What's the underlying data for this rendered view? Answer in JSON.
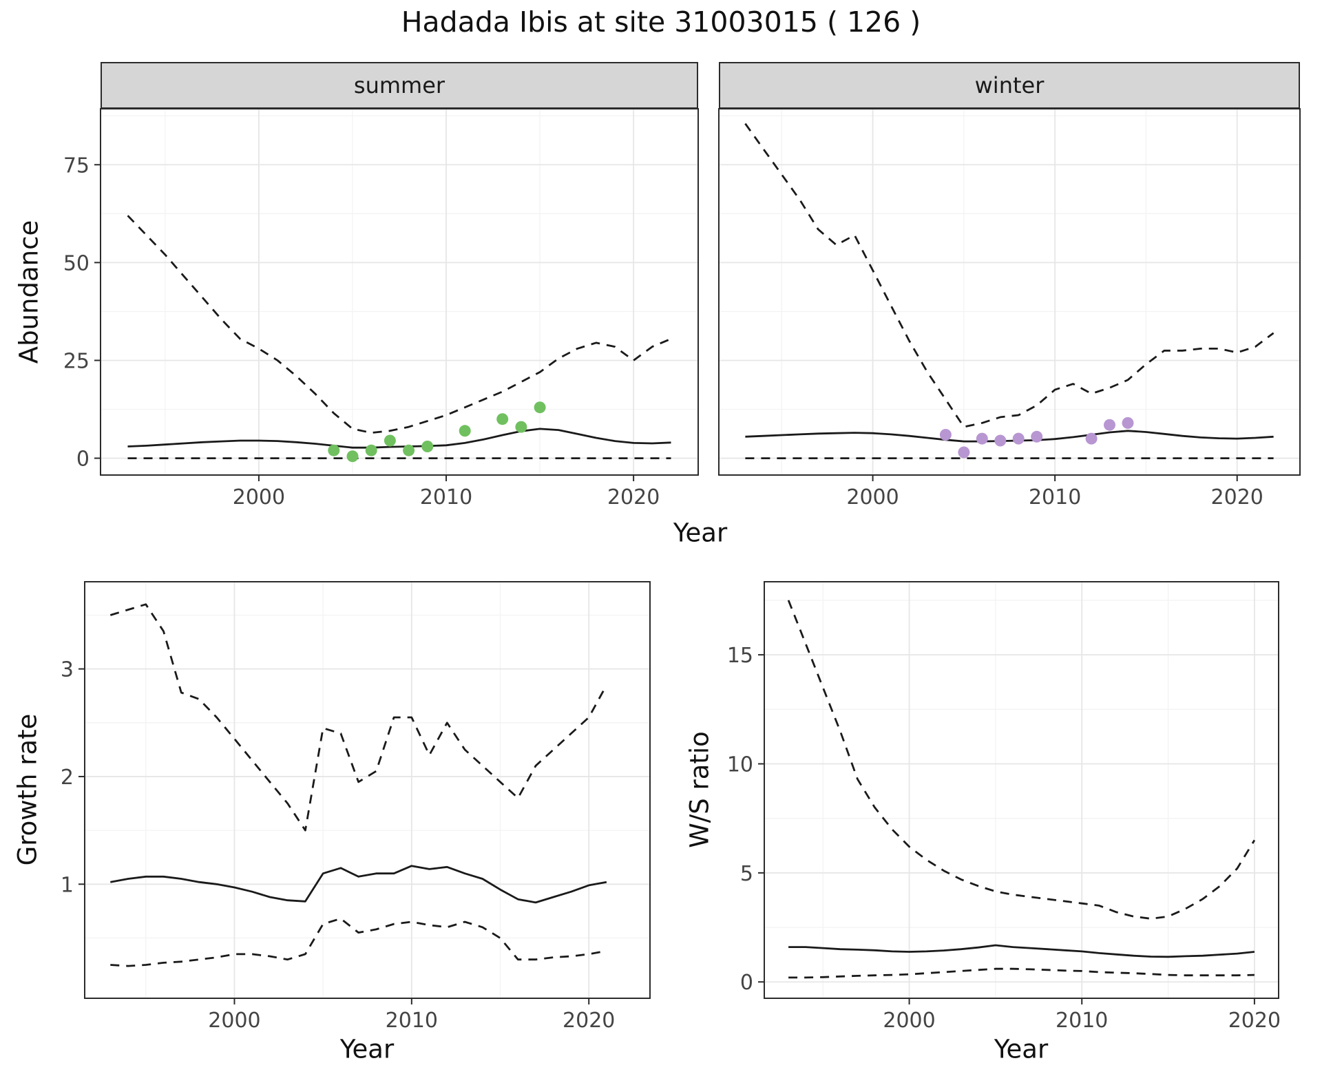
{
  "title": "Hadada Ibis at site 31003015 ( 126 )",
  "colors": {
    "line": "#1a1a1a",
    "summer_points": "#70c05f",
    "winter_points": "#b896d2",
    "grid_major": "#e6e6e6",
    "grid_minor": "#f3f3f3",
    "panel_border": "#2b2b2b",
    "strip_bg": "#d6d6d6",
    "strip_border": "#2b2b2b",
    "strip_text": "#1a1a1a",
    "tick_text": "#444444"
  },
  "chart_data": [
    {
      "id": "abundance_summer",
      "type": "line",
      "facet": "summer",
      "ylabel": "Abundance",
      "xlabel": "Year",
      "xlim": [
        1991.55,
        2023.45
      ],
      "ylim": [
        -4.3,
        89.3
      ],
      "xticks": [
        2000,
        2010,
        2020
      ],
      "yticks": [
        0,
        25,
        50,
        75
      ],
      "x": [
        1993,
        1994,
        1995,
        1996,
        1997,
        1998,
        1999,
        2000,
        2001,
        2002,
        2003,
        2004,
        2005,
        2006,
        2007,
        2008,
        2009,
        2010,
        2011,
        2012,
        2013,
        2014,
        2015,
        2016,
        2017,
        2018,
        2019,
        2020,
        2021,
        2022
      ],
      "series": [
        {
          "name": "upper_95_ci",
          "style": "dashed",
          "values": [
            62,
            57,
            52,
            46.5,
            41,
            35.5,
            30.5,
            28,
            25,
            21,
            16.5,
            11.5,
            7.5,
            6.5,
            7,
            8,
            9.5,
            11,
            13,
            15,
            17,
            19.5,
            22,
            25.5,
            28,
            29.5,
            28.5,
            25,
            28.5,
            30.5
          ]
        },
        {
          "name": "median",
          "style": "solid",
          "values": [
            3,
            3.2,
            3.5,
            3.8,
            4.1,
            4.3,
            4.5,
            4.5,
            4.4,
            4.1,
            3.7,
            3.2,
            2.7,
            2.7,
            2.9,
            3,
            3.1,
            3.3,
            3.9,
            4.8,
            5.9,
            6.9,
            7.5,
            7.2,
            6.2,
            5.2,
            4.4,
            3.9,
            3.8,
            4
          ]
        },
        {
          "name": "lower_95_ci",
          "style": "dashed",
          "values": [
            0,
            0,
            0,
            0,
            0,
            0,
            0,
            0,
            0,
            0,
            0,
            0,
            0,
            0,
            0,
            0,
            0,
            0,
            0,
            0,
            0,
            0,
            0,
            0,
            0,
            0,
            0,
            0,
            0,
            0
          ]
        }
      ],
      "points": {
        "name": "observed_counts",
        "color_key": "summer_points",
        "x": [
          2004,
          2005,
          2006,
          2007,
          2008,
          2009,
          2011,
          2013,
          2014,
          2015
        ],
        "y": [
          2,
          0.5,
          2,
          4.5,
          2,
          3,
          7,
          10,
          8,
          13
        ]
      }
    },
    {
      "id": "abundance_winter",
      "type": "line",
      "facet": "winter",
      "ylabel": "Abundance",
      "xlabel": "Year",
      "xlim": [
        1991.55,
        2023.45
      ],
      "ylim": [
        -4.3,
        89.3
      ],
      "xticks": [
        2000,
        2010,
        2020
      ],
      "yticks": [
        0,
        25,
        50,
        75
      ],
      "x": [
        1993,
        1994,
        1995,
        1996,
        1997,
        1998,
        1999,
        2000,
        2001,
        2002,
        2003,
        2004,
        2005,
        2006,
        2007,
        2008,
        2009,
        2010,
        2011,
        2012,
        2013,
        2014,
        2015,
        2016,
        2017,
        2018,
        2019,
        2020,
        2021,
        2022
      ],
      "series": [
        {
          "name": "upper_95_ci",
          "style": "dashed",
          "values": [
            85.5,
            79,
            72.5,
            66,
            58.5,
            54.5,
            57,
            48,
            39,
            30,
            22,
            15,
            8,
            9,
            10.5,
            11,
            13.5,
            17.5,
            19,
            16.5,
            18,
            20,
            24,
            27.5,
            27.5,
            28,
            28,
            27,
            28.5,
            32
          ]
        },
        {
          "name": "median",
          "style": "solid",
          "values": [
            5.5,
            5.7,
            5.9,
            6.1,
            6.3,
            6.4,
            6.5,
            6.4,
            6.1,
            5.7,
            5.2,
            4.7,
            4.3,
            4.3,
            4.4,
            4.5,
            4.6,
            4.9,
            5.4,
            6,
            6.6,
            7,
            6.7,
            6.2,
            5.7,
            5.3,
            5.1,
            5,
            5.2,
            5.5
          ]
        },
        {
          "name": "lower_95_ci",
          "style": "dashed",
          "values": [
            0,
            0,
            0,
            0,
            0,
            0,
            0,
            0,
            0,
            0,
            0,
            0,
            0,
            0,
            0,
            0,
            0,
            0,
            0,
            0,
            0,
            0,
            0,
            0,
            0,
            0,
            0,
            0,
            0,
            0
          ]
        }
      ],
      "points": {
        "name": "observed_counts",
        "color_key": "winter_points",
        "x": [
          2004,
          2005,
          2006,
          2007,
          2008,
          2009,
          2012,
          2013,
          2014
        ],
        "y": [
          6,
          1.5,
          5,
          4.5,
          5,
          5.5,
          5,
          8.5,
          9
        ]
      }
    },
    {
      "id": "growth_rate",
      "type": "line",
      "facet": "",
      "ylabel": "Growth rate",
      "xlabel": "Year",
      "xlim": [
        1991.55,
        2023.45
      ],
      "ylim": [
        -0.06,
        3.81
      ],
      "xticks": [
        2000,
        2010,
        2020
      ],
      "yticks": [
        1,
        2,
        3
      ],
      "x": [
        1993,
        1994,
        1995,
        1996,
        1997,
        1998,
        1999,
        2000,
        2001,
        2002,
        2003,
        2004,
        2005,
        2006,
        2007,
        2008,
        2009,
        2010,
        2011,
        2012,
        2013,
        2014,
        2015,
        2016,
        2017,
        2018,
        2019,
        2020,
        2021
      ],
      "series": [
        {
          "name": "upper_95_ci",
          "style": "dashed",
          "values": [
            3.5,
            3.55,
            3.6,
            3.35,
            2.78,
            2.72,
            2.55,
            2.35,
            2.15,
            1.95,
            1.75,
            1.5,
            2.45,
            2.4,
            1.95,
            2.05,
            2.55,
            2.55,
            2.2,
            2.5,
            2.25,
            2.1,
            1.95,
            1.8,
            2.1,
            2.25,
            2.4,
            2.55,
            2.85
          ]
        },
        {
          "name": "median",
          "style": "solid",
          "values": [
            1.02,
            1.05,
            1.07,
            1.07,
            1.05,
            1.02,
            1,
            0.97,
            0.93,
            0.88,
            0.85,
            0.84,
            1.1,
            1.15,
            1.07,
            1.1,
            1.1,
            1.17,
            1.14,
            1.16,
            1.1,
            1.05,
            0.95,
            0.86,
            0.83,
            0.88,
            0.93,
            0.99,
            1.02
          ]
        },
        {
          "name": "lower_95_ci",
          "style": "dashed",
          "values": [
            0.25,
            0.24,
            0.25,
            0.27,
            0.28,
            0.3,
            0.32,
            0.35,
            0.35,
            0.33,
            0.3,
            0.35,
            0.63,
            0.68,
            0.55,
            0.58,
            0.63,
            0.65,
            0.62,
            0.6,
            0.65,
            0.6,
            0.5,
            0.3,
            0.3,
            0.32,
            0.33,
            0.35,
            0.38
          ]
        }
      ],
      "points": null
    },
    {
      "id": "ws_ratio",
      "type": "line",
      "facet": "",
      "ylabel": "W/S ratio",
      "xlabel": "Year",
      "xlim": [
        1991.6,
        2021.4
      ],
      "ylim": [
        -0.75,
        18.35
      ],
      "xticks": [
        2000,
        2010,
        2020
      ],
      "yticks": [
        0,
        5,
        10,
        15
      ],
      "x": [
        1993,
        1994,
        1995,
        1996,
        1997,
        1998,
        1999,
        2000,
        2001,
        2002,
        2003,
        2004,
        2005,
        2006,
        2007,
        2008,
        2009,
        2010,
        2011,
        2012,
        2013,
        2014,
        2015,
        2016,
        2017,
        2018,
        2019,
        2020
      ],
      "series": [
        {
          "name": "upper_95_ci",
          "style": "dashed",
          "values": [
            17.5,
            15.5,
            13.5,
            11.5,
            9.3,
            8,
            7,
            6.2,
            5.6,
            5.1,
            4.7,
            4.4,
            4.15,
            4,
            3.9,
            3.8,
            3.7,
            3.6,
            3.5,
            3.2,
            3,
            2.9,
            3,
            3.35,
            3.8,
            4.4,
            5.2,
            6.5
          ]
        },
        {
          "name": "median",
          "style": "solid",
          "values": [
            1.6,
            1.6,
            1.55,
            1.5,
            1.48,
            1.45,
            1.4,
            1.38,
            1.4,
            1.44,
            1.5,
            1.58,
            1.68,
            1.6,
            1.55,
            1.5,
            1.45,
            1.4,
            1.32,
            1.26,
            1.2,
            1.16,
            1.15,
            1.18,
            1.2,
            1.25,
            1.3,
            1.38
          ]
        },
        {
          "name": "lower_95_ci",
          "style": "dashed",
          "values": [
            0.2,
            0.2,
            0.22,
            0.25,
            0.28,
            0.3,
            0.32,
            0.35,
            0.4,
            0.45,
            0.5,
            0.55,
            0.6,
            0.6,
            0.58,
            0.55,
            0.52,
            0.5,
            0.45,
            0.42,
            0.4,
            0.36,
            0.32,
            0.3,
            0.3,
            0.3,
            0.3,
            0.32
          ]
        }
      ],
      "points": null
    }
  ]
}
